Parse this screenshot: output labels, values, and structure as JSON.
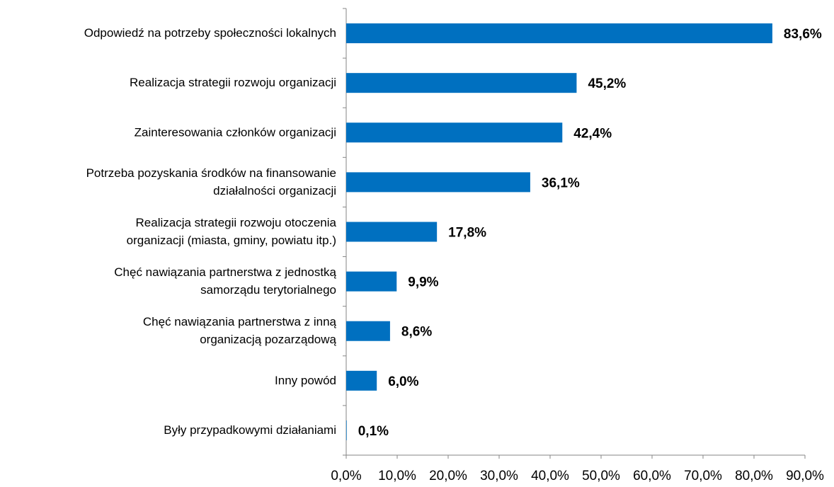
{
  "chart_data": {
    "type": "bar",
    "orientation": "horizontal",
    "color": "#0070c0",
    "categories": [
      [
        "Odpowiedź na potrzeby społeczności lokalnych"
      ],
      [
        "Realizacja strategii rozwoju organizacji"
      ],
      [
        "Zainteresowania członków organizacji"
      ],
      [
        "Potrzeba pozyskania środków na finansowanie",
        "działalności organizacji"
      ],
      [
        "Realizacja strategii rozwoju otoczenia",
        "organizacji (miasta, gminy, powiatu itp.)"
      ],
      [
        "Chęć nawiązania partnerstwa z jednostką",
        "samorządu terytorialnego"
      ],
      [
        "Chęć nawiązania partnerstwa z inną",
        "organizacją pozarządową"
      ],
      [
        "Inny powód"
      ],
      [
        "Były przypadkowymi działaniami"
      ]
    ],
    "values": [
      83.6,
      45.2,
      42.4,
      36.1,
      17.8,
      9.9,
      8.6,
      6.0,
      0.1
    ],
    "value_labels": [
      "83,6%",
      "45,2%",
      "42,4%",
      "36,1%",
      "17,8%",
      "9,9%",
      "8,6%",
      "6,0%",
      "0,1%"
    ],
    "xlim": [
      0,
      90
    ],
    "xticks": [
      {
        "value": 0,
        "label": "0,0%"
      },
      {
        "value": 10,
        "label": "10,0%"
      },
      {
        "value": 20,
        "label": "20,0%"
      },
      {
        "value": 30,
        "label": "30,0%"
      },
      {
        "value": 40,
        "label": "40,0%"
      },
      {
        "value": 50,
        "label": "50,0%"
      },
      {
        "value": 60,
        "label": "60,0%"
      },
      {
        "value": 70,
        "label": "70,0%"
      },
      {
        "value": 80,
        "label": "80,0%"
      },
      {
        "value": 90,
        "label": "90,0%"
      }
    ],
    "grid": false
  }
}
